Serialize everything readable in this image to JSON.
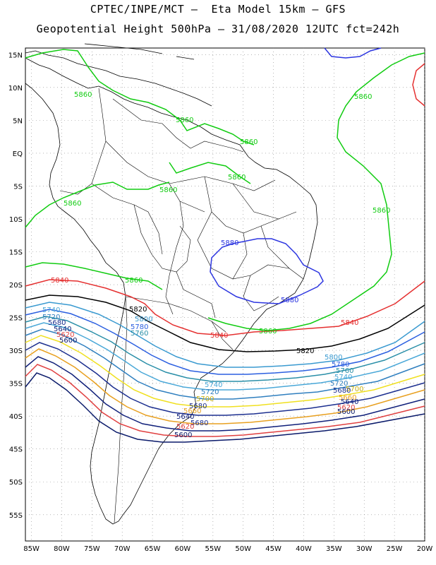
{
  "header": {
    "title_line1": "CPTEC/INPE/MCT –  Eta Model 15km – GFS",
    "title_line2": "Geopotential Height 500hPa – 31/08/2020 12UTC fct=242h"
  },
  "map": {
    "projection": "lat-lon",
    "lon_range": [
      -86,
      -20
    ],
    "lat_range": [
      -59,
      16
    ],
    "grid": "dotted",
    "lon_ticks": [
      "85W",
      "80W",
      "75W",
      "70W",
      "65W",
      "60W",
      "55W",
      "50W",
      "45W",
      "40W",
      "35W",
      "30W",
      "25W",
      "20W"
    ],
    "lat_ticks": [
      "15N",
      "10N",
      "5N",
      "EQ",
      "5S",
      "10S",
      "15S",
      "20S",
      "25S",
      "30S",
      "35S",
      "40S",
      "45S",
      "50S",
      "55S"
    ]
  },
  "contours": [
    {
      "value": 5880,
      "label": "5880",
      "color": "#2c35e0",
      "labels": [
        "5880",
        "5880"
      ]
    },
    {
      "value": 5860,
      "label": "5860",
      "color": "#11cc11",
      "labels": [
        "5860",
        "5860",
        "5860",
        "5860",
        "5860",
        "5860",
        "5860",
        "5860",
        "5860",
        "5860"
      ]
    },
    {
      "value": 5840,
      "label": "5840",
      "color": "#e53030",
      "labels": [
        "5840",
        "5840",
        "5840"
      ]
    },
    {
      "value": 5820,
      "label": "5820",
      "color": "#000000",
      "labels": [
        "5820",
        "5820"
      ]
    },
    {
      "value": 5800,
      "label": "5800",
      "color": "#3a9ad0",
      "labels": [
        "5800",
        "5800"
      ]
    },
    {
      "value": 5780,
      "label": "5780",
      "color": "#2b5fe0",
      "labels": [
        "5780",
        "5780"
      ]
    },
    {
      "value": 5760,
      "label": "5760",
      "color": "#2a8fa8",
      "labels": [
        "5760",
        "5760"
      ]
    },
    {
      "value": 5740,
      "label": "5740",
      "color": "#4aa8d8",
      "labels": [
        "5740",
        "5740",
        "5740"
      ]
    },
    {
      "value": 5720,
      "label": "5720",
      "color": "#2f7fbf",
      "labels": [
        "5720",
        "5720",
        "5720"
      ]
    },
    {
      "value": 5700,
      "label": "5700",
      "color": "#f0e020",
      "labels": [
        "5700",
        "5700"
      ]
    },
    {
      "value": 5680,
      "label": "5680",
      "color": "#1c2f8f",
      "labels": [
        "5680",
        "5680",
        "5680",
        "5680"
      ]
    },
    {
      "value": 5660,
      "label": "5660",
      "color": "#e8a020",
      "labels": [
        "5660",
        "5660"
      ]
    },
    {
      "value": 5640,
      "label": "5640",
      "color": "#10207a",
      "labels": [
        "5640",
        "5640",
        "5640"
      ]
    },
    {
      "value": 5620,
      "label": "5620",
      "color": "#e04040",
      "labels": [
        "5620",
        "5620",
        "5620"
      ]
    },
    {
      "value": 5600,
      "label": "5600",
      "color": "#0a1a6a",
      "labels": [
        "5600",
        "5600",
        "5600"
      ]
    }
  ]
}
